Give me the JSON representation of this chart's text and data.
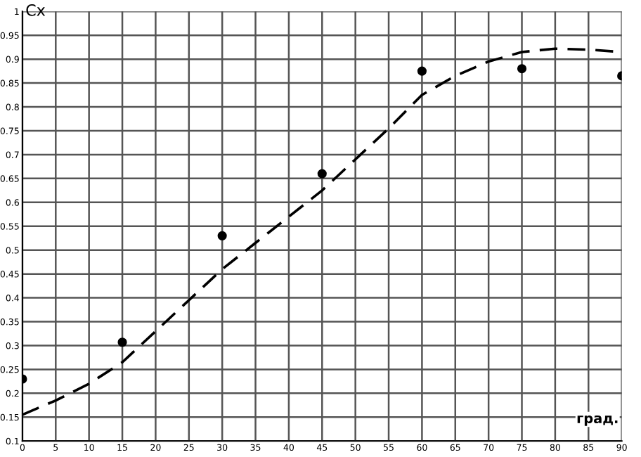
{
  "chart_data": {
    "type": "scatter",
    "xlabel": "град.",
    "ylabel": "Cx",
    "xlim": [
      0,
      90
    ],
    "ylim": [
      0.1,
      1
    ],
    "xticks": [
      0,
      5,
      10,
      15,
      20,
      25,
      30,
      35,
      40,
      45,
      50,
      55,
      60,
      65,
      70,
      75,
      80,
      85,
      90
    ],
    "yticks": [
      0.1,
      0.15,
      0.2,
      0.25,
      0.3,
      0.35,
      0.4,
      0.45,
      0.5,
      0.55,
      0.6,
      0.65,
      0.7,
      0.75,
      0.8,
      0.85,
      0.9,
      0.95,
      1
    ],
    "grid": true,
    "series": [
      {
        "color": "#000000",
        "marker": "circle",
        "x": [
          0,
          15,
          30,
          45,
          60,
          75,
          90
        ],
        "values": [
          0.23,
          0.307,
          0.53,
          0.66,
          0.875,
          0.88,
          0.865
        ]
      },
      {
        "type": "line",
        "color": "#000000",
        "line_style": "dashed",
        "marker": "none",
        "x": [
          0,
          5,
          10,
          15,
          20,
          25,
          30,
          35,
          40,
          45,
          50,
          55,
          60,
          65,
          70,
          75,
          80,
          85,
          90
        ],
        "values": [
          0.155,
          0.185,
          0.22,
          0.265,
          0.33,
          0.395,
          0.46,
          0.515,
          0.57,
          0.625,
          0.69,
          0.755,
          0.825,
          0.865,
          0.895,
          0.915,
          0.922,
          0.92,
          0.915
        ]
      }
    ]
  }
}
